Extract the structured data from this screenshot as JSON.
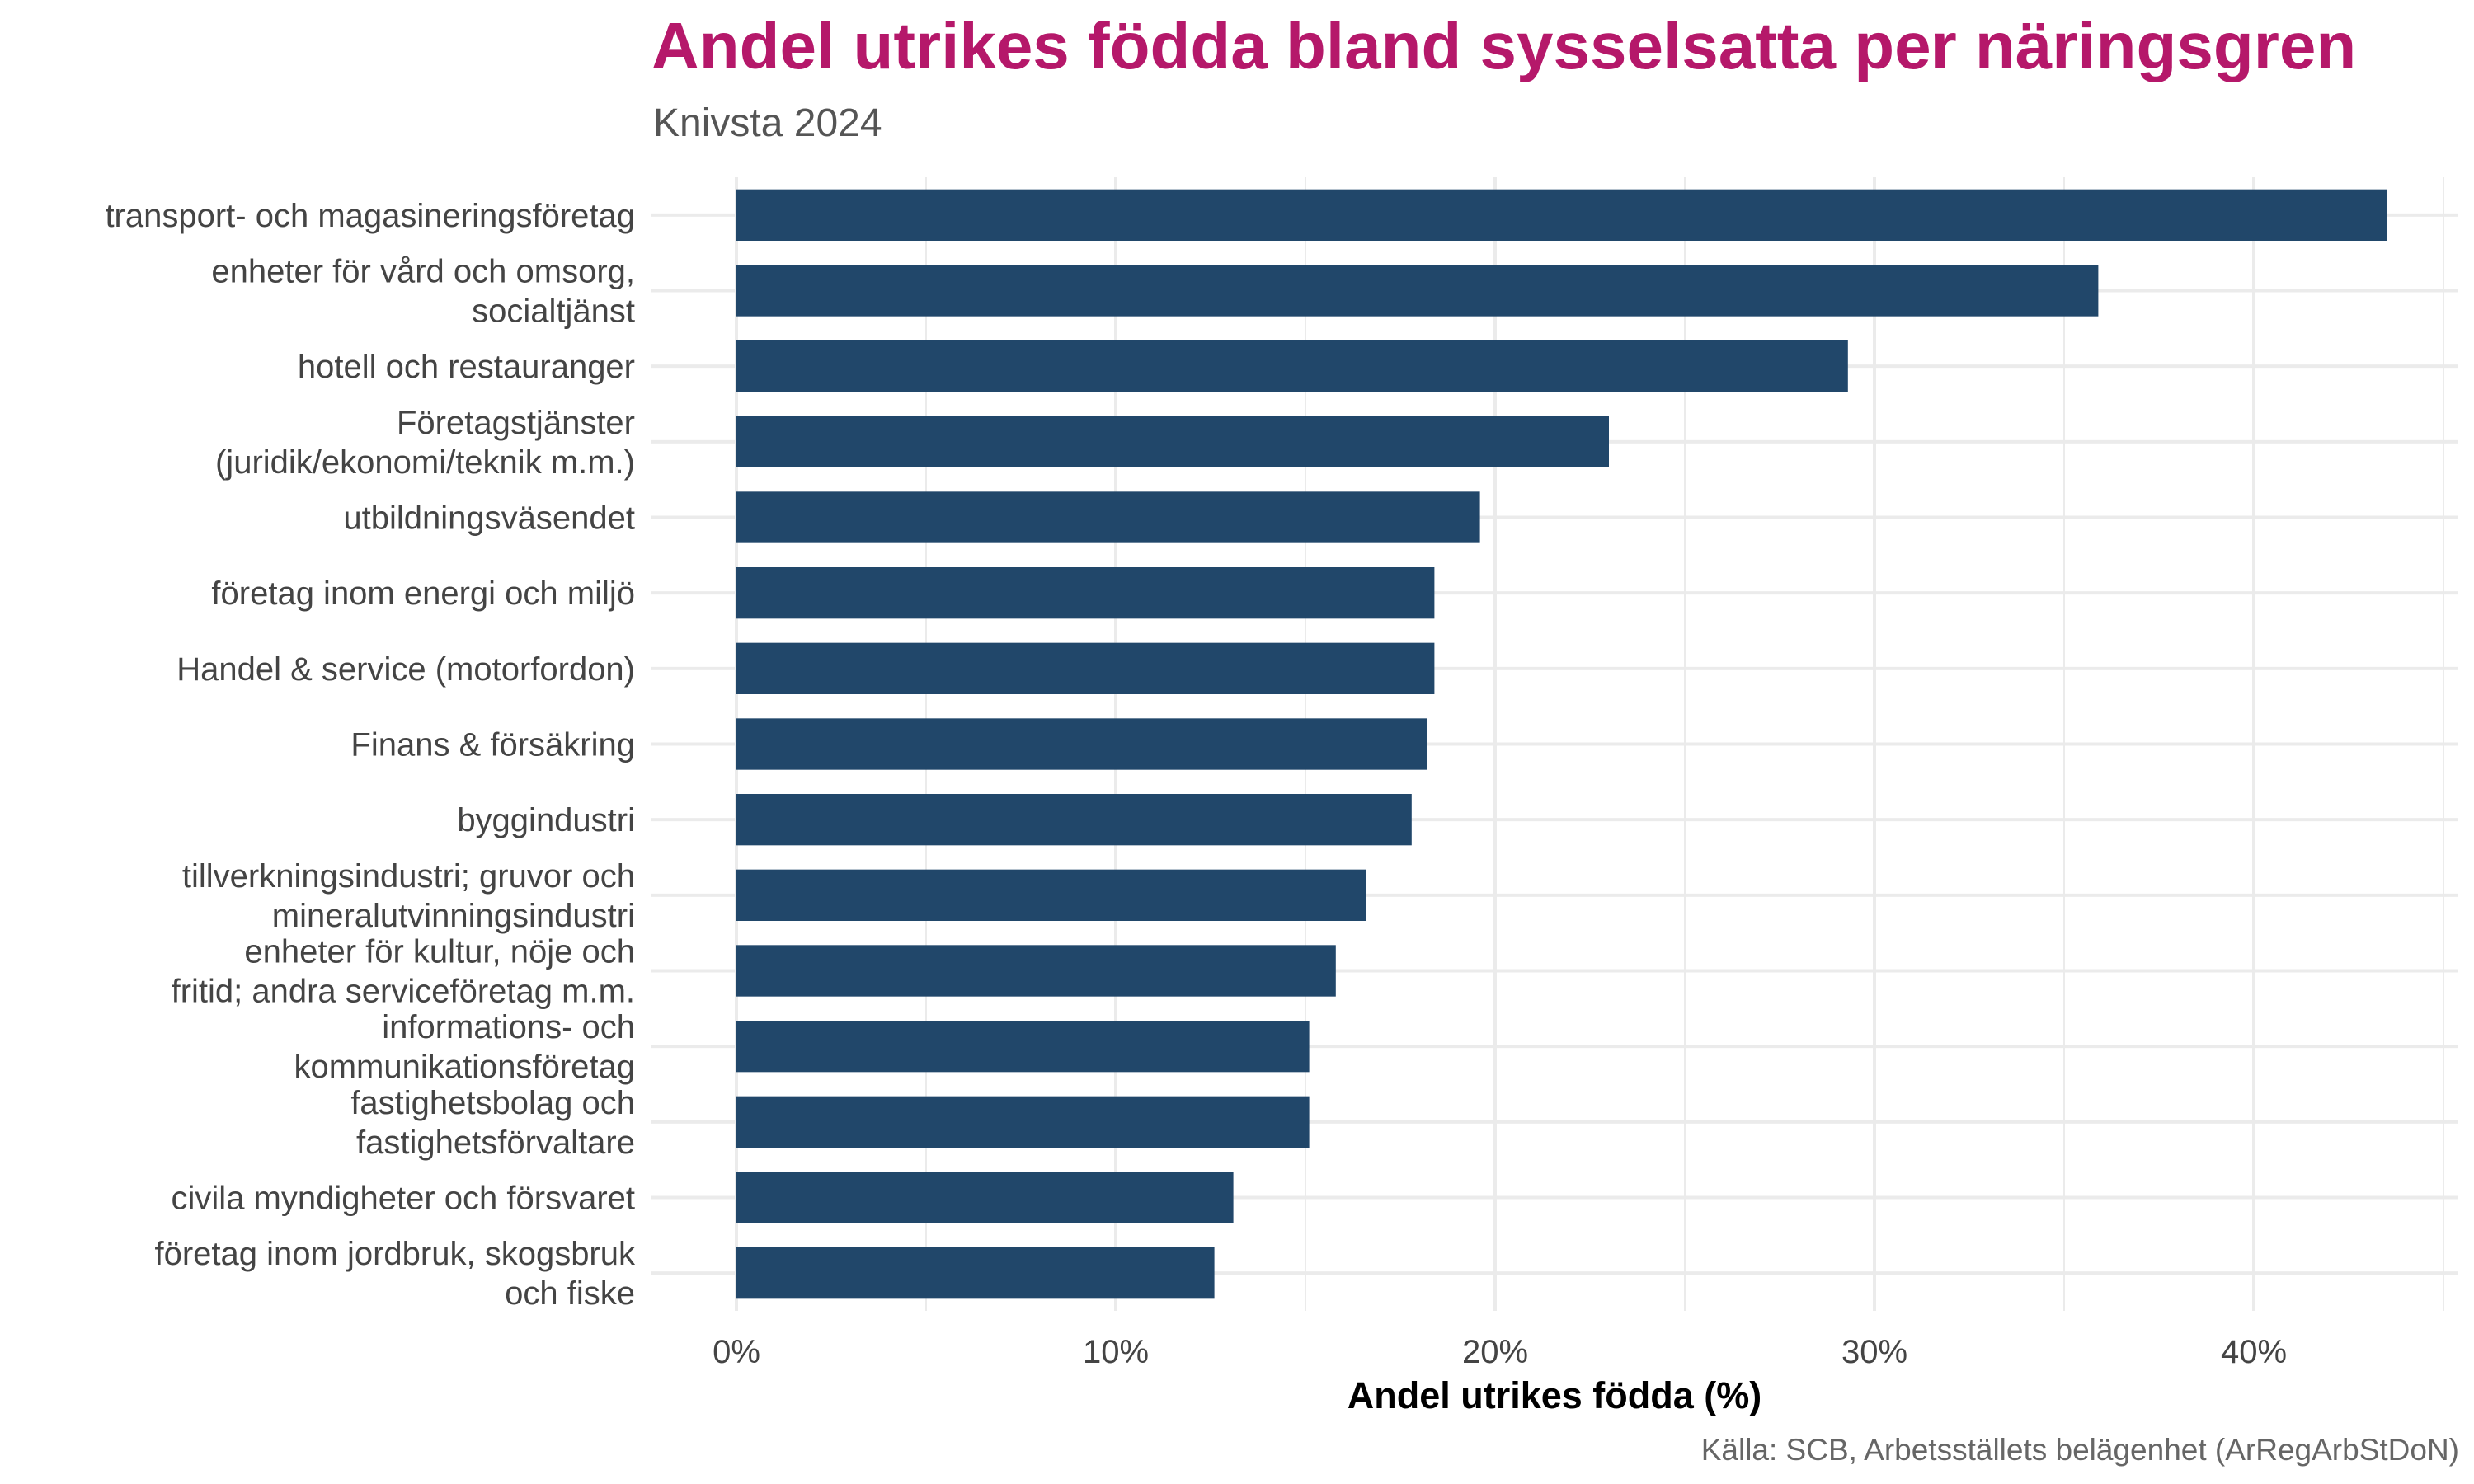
{
  "chart_data": {
    "type": "bar",
    "orientation": "horizontal",
    "title": "Andel utrikes födda bland sysselsatta per näringsgren",
    "subtitle": "Knivsta 2024",
    "xlabel": "Andel utrikes födda (%)",
    "ylabel": "",
    "xlim": [
      0,
      45
    ],
    "xticks": [
      0,
      10,
      20,
      30,
      40
    ],
    "xtick_labels": [
      "0%",
      "10%",
      "20%",
      "30%",
      "40%"
    ],
    "grid": true,
    "legend": "none",
    "bar_color": "#21476a",
    "caption": "Källa: SCB, Arbetsställets belägenhet (ArRegArbStDoN)",
    "categories": [
      [
        "transport- och magasineringsföretag"
      ],
      [
        "enheter för vård och omsorg,",
        "socialtjänst"
      ],
      [
        "hotell och restauranger"
      ],
      [
        "Företagstjänster",
        "(juridik/ekonomi/teknik m.m.)"
      ],
      [
        "utbildningsväsendet"
      ],
      [
        "företag inom energi och miljö"
      ],
      [
        "Handel & service (motorfordon)"
      ],
      [
        "Finans & försäkring"
      ],
      [
        "byggindustri"
      ],
      [
        "tillverkningsindustri; gruvor och",
        "mineralutvinningsindustri"
      ],
      [
        "enheter för kultur, nöje och",
        "fritid; andra serviceföretag m.m."
      ],
      [
        "informations- och",
        "kommunikationsföretag"
      ],
      [
        "fastighetsbolag och",
        "fastighetsförvaltare"
      ],
      [
        "civila myndigheter och försvaret"
      ],
      [
        "företag inom jordbruk, skogsbruk",
        "och fiske"
      ]
    ],
    "values": [
      43.5,
      35.9,
      29.3,
      23.0,
      19.6,
      18.4,
      18.4,
      18.2,
      17.8,
      16.6,
      15.8,
      15.1,
      15.1,
      13.1,
      12.6
    ]
  }
}
